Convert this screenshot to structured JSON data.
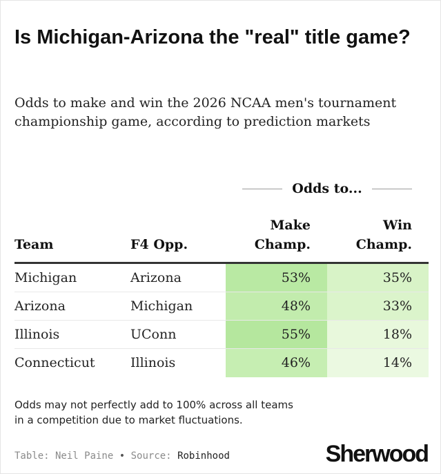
{
  "header": {
    "title": "Is Michigan-Arizona the \"real\" title game?",
    "subtitle": "Odds to make and win the 2026 NCAA men's tournament championship game, according to prediction markets"
  },
  "table": {
    "spanner_label": "Odds to...",
    "columns": {
      "team": "Team",
      "opponent": "F4 Opp.",
      "make_line1": "Make",
      "make_line2": "Champ.",
      "win_line1": "Win",
      "win_line2": "Champ."
    },
    "rows": [
      {
        "team": "Michigan",
        "opponent": "Arizona",
        "make": "53%",
        "win": "35%",
        "make_color": "#b9e9a3",
        "win_color": "#d8f3c7"
      },
      {
        "team": "Arizona",
        "opponent": "Michigan",
        "make": "48%",
        "win": "33%",
        "make_color": "#c2ecad",
        "win_color": "#dbf4cb"
      },
      {
        "team": "Illinois",
        "opponent": "UConn",
        "make": "55%",
        "win": "18%",
        "make_color": "#b5e79e",
        "win_color": "#e8f8dc"
      },
      {
        "team": "Connecticut",
        "opponent": "Illinois",
        "make": "46%",
        "win": "14%",
        "make_color": "#c6eeb2",
        "win_color": "#ebf9e1"
      }
    ]
  },
  "footer": {
    "note": "Odds may not perfectly add to 100% across all teams in a competition due to market fluctuations.",
    "credit_label": "Table: Neil Paine",
    "separator": "•",
    "source_label": "Source:",
    "source_value": "Robinhood",
    "logo": "Sherwood"
  }
}
